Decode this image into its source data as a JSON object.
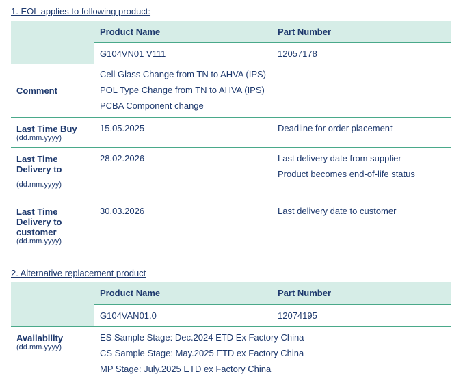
{
  "section1": {
    "title": "1. EOL applies to following product:",
    "headers": {
      "product_name": "Product Name",
      "part_number": "Part Number"
    },
    "product": {
      "name": "G104VN01 V111",
      "part": "12057178"
    },
    "comment": {
      "label": "Comment",
      "lines": [
        "Cell Glass Change from TN to AHVA (IPS)",
        "POL Type Change from TN to AHVA (IPS)",
        "PCBA Component change"
      ]
    },
    "ltb": {
      "label": "Last Time Buy",
      "format": "(dd.mm.yyyy)",
      "date": "15.05.2025",
      "note": "Deadline for order placement"
    },
    "ltd": {
      "label": "Last Time Delivery to",
      "format": "(dd.mm.yyyy)",
      "date": "28.02.2026",
      "notes": [
        "Last delivery date from supplier",
        "Product becomes end-of-life status"
      ]
    },
    "ltdc": {
      "label": "Last Time Delivery to customer",
      "format": "(dd.mm.yyyy)",
      "date": "30.03.2026",
      "note": "Last delivery date to customer"
    }
  },
  "section2": {
    "title": "2. Alternative replacement product",
    "headers": {
      "product_name": "Product Name",
      "part_number": "Part Number"
    },
    "product": {
      "name": "G104VAN01.0",
      "part": "12074195"
    },
    "availability": {
      "label": "Availability",
      "format": "(dd.mm.yyyy)",
      "lines": [
        "ES Sample Stage: Dec.2024 ETD Ex Factory China",
        "CS Sample Stage: May.2025 ETD ex Factory China",
        "MP Stage: July.2025 ETD ex Factory China"
      ]
    }
  },
  "colors": {
    "text": "#1f3a6e",
    "header_bg": "#d6ede7",
    "rule": "#4aa98a"
  }
}
